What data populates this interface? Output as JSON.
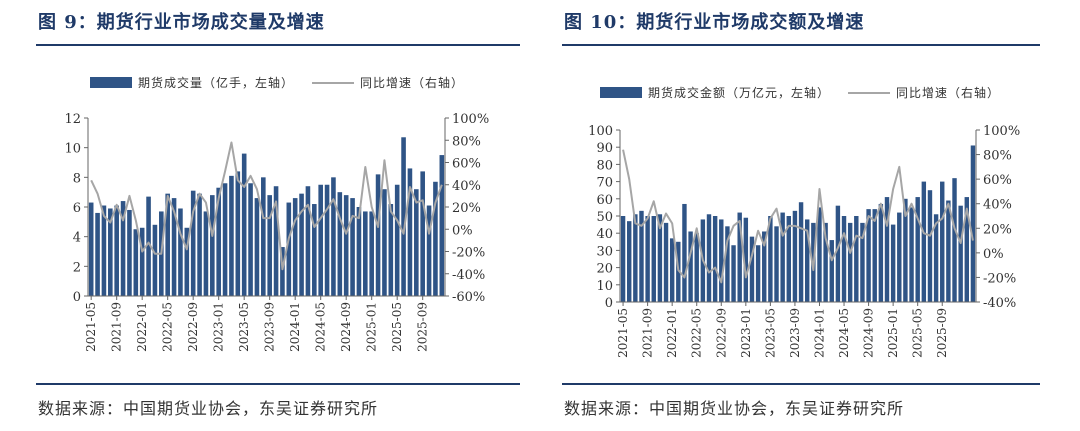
{
  "colors": {
    "bar": "#2f5486",
    "line": "#a6a6a6",
    "title": "#1f3a68"
  },
  "source": "数据来源：中国期货业协会，东吴证券研究所",
  "chart_data": [
    {
      "type": "bar+line",
      "title": "图 9：期货行业市场成交量及增速",
      "legend_bar": "期货成交量（亿手，左轴）",
      "legend_line": "同比增速（右轴）",
      "y_left_ticks": [
        "0",
        "2",
        "4",
        "6",
        "8",
        "10",
        "12"
      ],
      "y_right_ticks": [
        "-60%",
        "-40%",
        "-20%",
        "0%",
        "20%",
        "40%",
        "60%",
        "80%",
        "100%"
      ],
      "ylim_left": [
        0,
        12
      ],
      "ylim_right": [
        -60,
        100
      ],
      "x_tick_labels": [
        "2021-05",
        "2021-09",
        "2022-01",
        "2022-05",
        "2022-09",
        "2023-01",
        "2023-05",
        "2023-09",
        "2024-01",
        "2024-05",
        "2024-09",
        "2025-01",
        "2025-05",
        "2025-09"
      ],
      "x_tick_every": 4,
      "bar_values": [
        6.3,
        5.6,
        6.1,
        5.9,
        6.1,
        6.4,
        5.8,
        4.5,
        4.6,
        6.7,
        4.8,
        5.7,
        6.9,
        6.6,
        5.9,
        4.6,
        7.1,
        6.9,
        5.7,
        6.8,
        7.3,
        7.6,
        8.1,
        8.4,
        9.6,
        7.6,
        6.6,
        8.0,
        6.8,
        7.4,
        3.3,
        6.3,
        6.6,
        6.9,
        7.4,
        6.2,
        7.5,
        7.5,
        8.0,
        7.0,
        6.8,
        6.6,
        6.0,
        5.7,
        5.7,
        8.2,
        7.2,
        6.2,
        7.5,
        10.7,
        8.6,
        7.2,
        8.4,
        6.1,
        7.7,
        9.5
      ],
      "line_values": [
        44,
        32,
        12,
        6,
        22,
        8,
        30,
        8,
        -20,
        -12,
        -22,
        -22,
        30,
        16,
        -4,
        -18,
        16,
        32,
        24,
        -6,
        28,
        52,
        78,
        44,
        38,
        48,
        36,
        10,
        10,
        25,
        -36,
        -8,
        8,
        16,
        22,
        2,
        10,
        18,
        27,
        10,
        -4,
        12,
        10,
        56,
        20,
        2,
        62,
        16,
        8,
        -4,
        38,
        24,
        26,
        -4,
        24,
        40
      ]
    },
    {
      "type": "bar+line",
      "title": "图 10：期货行业市场成交额及增速",
      "legend_bar": "期货成交金额（万亿元，左轴）",
      "legend_line": "同比增速（右轴）",
      "y_left_ticks": [
        "0",
        "10",
        "20",
        "30",
        "40",
        "50",
        "60",
        "70",
        "80",
        "90",
        "100"
      ],
      "y_right_ticks": [
        "-40%",
        "-20%",
        "0%",
        "20%",
        "40%",
        "60%",
        "80%",
        "100%"
      ],
      "ylim_left": [
        0,
        100
      ],
      "ylim_right": [
        -40,
        100
      ],
      "x_tick_labels": [
        "2021-05",
        "2021-09",
        "2022-01",
        "2022-05",
        "2022-09",
        "2023-01",
        "2023-05",
        "2023-09",
        "2024-01",
        "2024-05",
        "2024-09",
        "2025-01",
        "2025-05",
        "2025-09"
      ],
      "x_tick_every": 4,
      "bar_values": [
        50,
        47,
        51,
        53,
        50,
        50,
        51,
        46,
        37,
        35,
        57,
        41,
        40,
        48,
        51,
        50,
        48,
        44,
        33,
        52,
        49,
        38,
        33,
        41,
        50,
        44,
        52,
        50,
        53,
        58,
        48,
        46,
        55,
        46,
        36,
        56,
        50,
        46,
        50,
        46,
        54,
        54,
        57,
        61,
        45,
        52,
        60,
        55,
        61,
        70,
        65,
        51,
        70,
        59,
        72,
        56,
        61,
        91
      ],
      "line_values": [
        84,
        60,
        24,
        22,
        28,
        42,
        20,
        32,
        24,
        -14,
        -20,
        0,
        20,
        -6,
        -16,
        -12,
        -24,
        10,
        22,
        26,
        -20,
        -2,
        18,
        6,
        28,
        36,
        14,
        22,
        22,
        20,
        18,
        -14,
        52,
        12,
        -6,
        4,
        16,
        0,
        14,
        12,
        30,
        26,
        40,
        22,
        52,
        70,
        30,
        40,
        28,
        16,
        14,
        24,
        28,
        40,
        20,
        8,
        36,
        10
      ]
    }
  ]
}
